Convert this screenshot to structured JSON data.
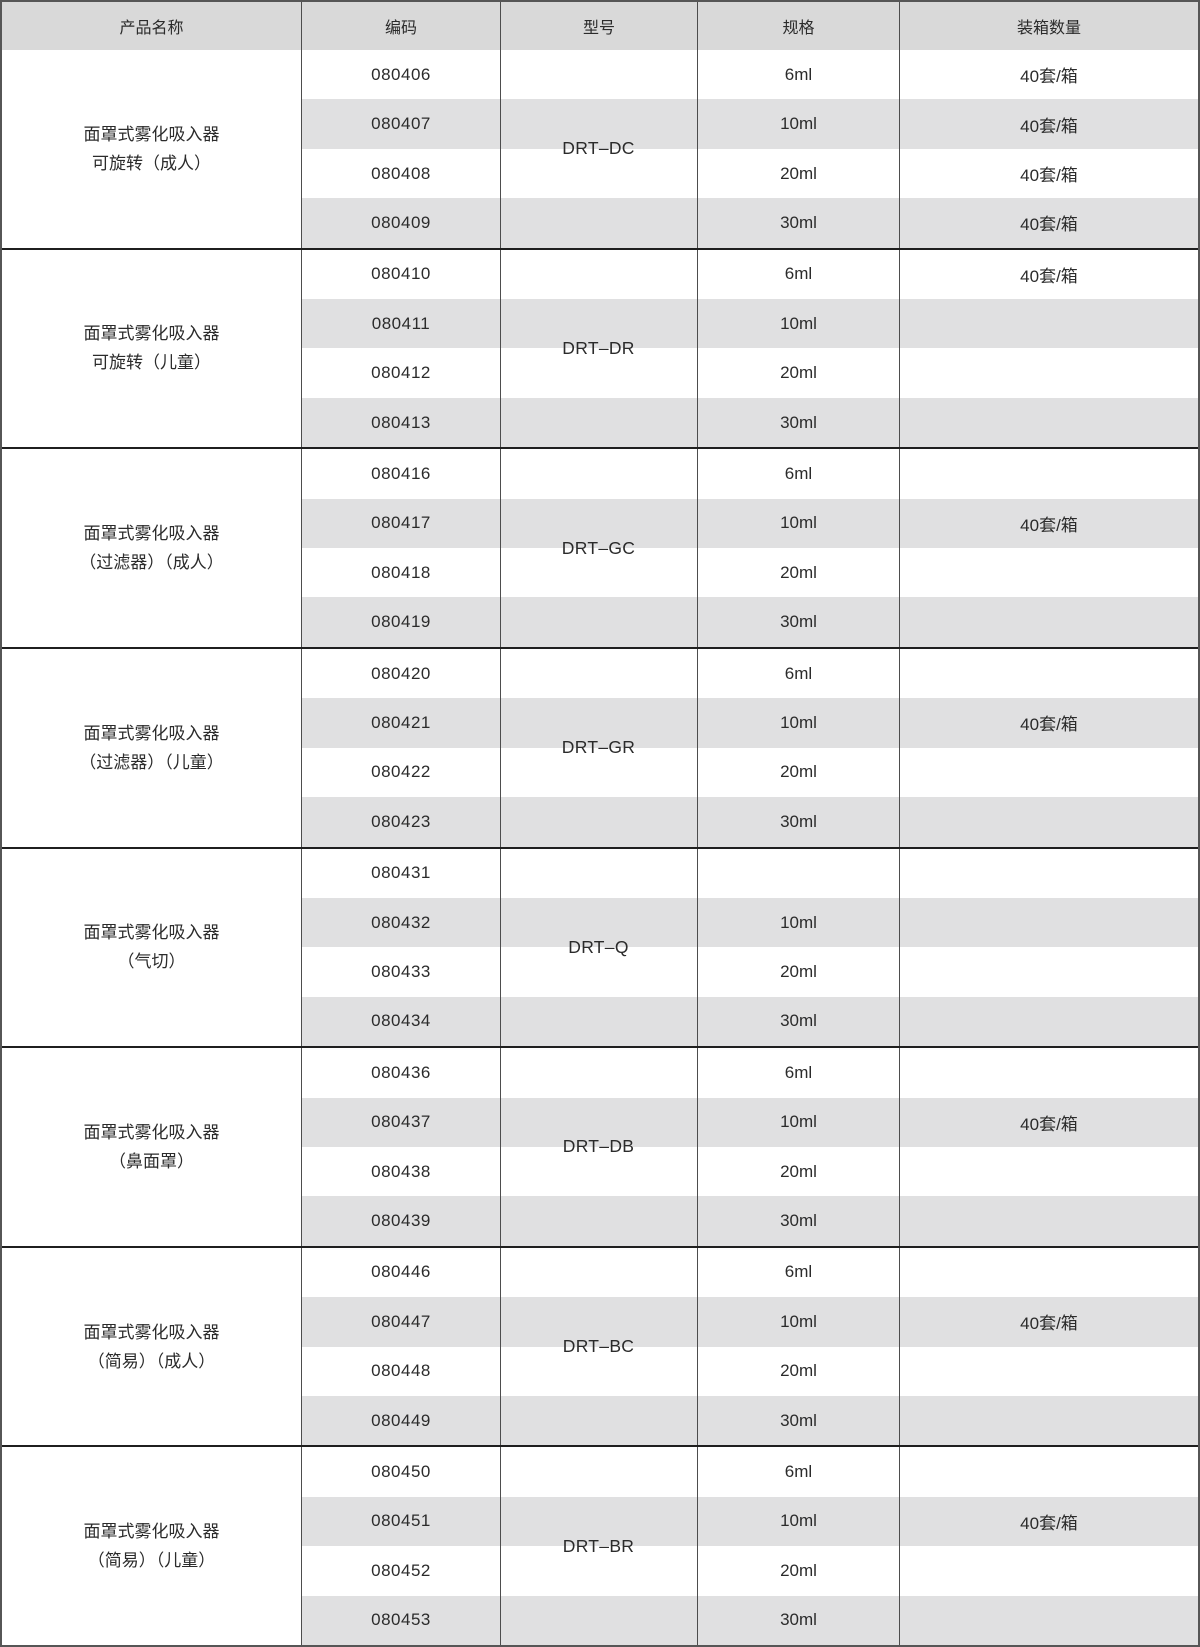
{
  "colors": {
    "header-bg": "#d9d9d9",
    "stripe-bg": "#e0e0e1",
    "line": "#4d4d4d",
    "group-line": "#1f1f1f",
    "outer": "#565656",
    "text": "#2b2b2b"
  },
  "table": {
    "headers": [
      "产品名称",
      "编码",
      "型号",
      "规格",
      "装箱数量"
    ],
    "groups": [
      {
        "name_line1": "面罩式雾化吸入器",
        "name_line2": "可旋转（成人）",
        "model": "DRT–DC",
        "rows": [
          {
            "code": "080406",
            "spec": "6ml",
            "packing": "40套/箱"
          },
          {
            "code": "080407",
            "spec": "10ml",
            "packing": "40套/箱"
          },
          {
            "code": "080408",
            "spec": "20ml",
            "packing": "40套/箱"
          },
          {
            "code": "080409",
            "spec": "30ml",
            "packing": "40套/箱"
          }
        ]
      },
      {
        "name_line1": "面罩式雾化吸入器",
        "name_line2": "可旋转（儿童）",
        "model": "DRT–DR",
        "rows": [
          {
            "code": "080410",
            "spec": "6ml",
            "packing": "40套/箱"
          },
          {
            "code": "080411",
            "spec": "10ml",
            "packing": ""
          },
          {
            "code": "080412",
            "spec": "20ml",
            "packing": ""
          },
          {
            "code": "080413",
            "spec": "30ml",
            "packing": ""
          }
        ]
      },
      {
        "name_line1": "面罩式雾化吸入器",
        "name_line2": "（过滤器）（成人）",
        "model": "DRT–GC",
        "rows": [
          {
            "code": "080416",
            "spec": "6ml",
            "packing": ""
          },
          {
            "code": "080417",
            "spec": "10ml",
            "packing": "40套/箱"
          },
          {
            "code": "080418",
            "spec": "20ml",
            "packing": ""
          },
          {
            "code": "080419",
            "spec": "30ml",
            "packing": ""
          }
        ]
      },
      {
        "name_line1": "面罩式雾化吸入器",
        "name_line2": "（过滤器）（儿童）",
        "model": "DRT–GR",
        "rows": [
          {
            "code": "080420",
            "spec": "6ml",
            "packing": ""
          },
          {
            "code": "080421",
            "spec": "10ml",
            "packing": "40套/箱"
          },
          {
            "code": "080422",
            "spec": "20ml",
            "packing": ""
          },
          {
            "code": "080423",
            "spec": "30ml",
            "packing": ""
          }
        ]
      },
      {
        "name_line1": "面罩式雾化吸入器",
        "name_line2": "（气切）",
        "model": "DRT–Q",
        "rows": [
          {
            "code": "080431",
            "spec": "",
            "packing": ""
          },
          {
            "code": "080432",
            "spec": "10ml",
            "packing": ""
          },
          {
            "code": "080433",
            "spec": "20ml",
            "packing": ""
          },
          {
            "code": "080434",
            "spec": "30ml",
            "packing": ""
          }
        ]
      },
      {
        "name_line1": "面罩式雾化吸入器",
        "name_line2": "（鼻面罩）",
        "model": "DRT–DB",
        "rows": [
          {
            "code": "080436",
            "spec": "6ml",
            "packing": ""
          },
          {
            "code": "080437",
            "spec": "10ml",
            "packing": "40套/箱"
          },
          {
            "code": "080438",
            "spec": "20ml",
            "packing": ""
          },
          {
            "code": "080439",
            "spec": "30ml",
            "packing": ""
          }
        ]
      },
      {
        "name_line1": "面罩式雾化吸入器",
        "name_line2": "（简易）（成人）",
        "model": "DRT–BC",
        "rows": [
          {
            "code": "080446",
            "spec": "6ml",
            "packing": ""
          },
          {
            "code": "080447",
            "spec": "10ml",
            "packing": "40套/箱"
          },
          {
            "code": "080448",
            "spec": "20ml",
            "packing": ""
          },
          {
            "code": "080449",
            "spec": "30ml",
            "packing": ""
          }
        ]
      },
      {
        "name_line1": "面罩式雾化吸入器",
        "name_line2": "（简易）（儿童）",
        "model": "DRT–BR",
        "rows": [
          {
            "code": "080450",
            "spec": "6ml",
            "packing": ""
          },
          {
            "code": "080451",
            "spec": "10ml",
            "packing": "40套/箱"
          },
          {
            "code": "080452",
            "spec": "20ml",
            "packing": ""
          },
          {
            "code": "080453",
            "spec": "30ml",
            "packing": ""
          }
        ]
      }
    ]
  }
}
